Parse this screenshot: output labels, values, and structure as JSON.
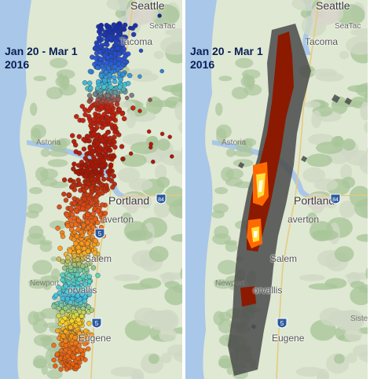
{
  "date_label": "Jan 20 - Mar 1\n2016",
  "cities": [
    {
      "id": "seattle",
      "name": "Seattle",
      "size": "large"
    },
    {
      "id": "seatac",
      "name": "SeaTac",
      "size": "small"
    },
    {
      "id": "tacoma",
      "name": "Tacoma",
      "size": "medium"
    },
    {
      "id": "astoria",
      "name": "Astoria",
      "size": "faint"
    },
    {
      "id": "portland",
      "name": "Portland",
      "size": "large"
    },
    {
      "id": "beaverton",
      "name": "averton",
      "size": "medium"
    },
    {
      "id": "salem",
      "name": "Salem",
      "size": "medium"
    },
    {
      "id": "newport",
      "name": "Newport",
      "size": "faint"
    },
    {
      "id": "corvallis",
      "name": "orvallis",
      "size": "medium"
    },
    {
      "id": "eugene",
      "name": "Eugene",
      "size": "medium"
    },
    {
      "id": "sisters",
      "name": "Siste",
      "size": "faint"
    }
  ],
  "highways": [
    "5",
    "84",
    "5",
    "5"
  ],
  "colors": {
    "water": "#a9c7e8",
    "land": "#dfe8d3",
    "forest": "#a9c59a",
    "mountain": "#cfd8c4",
    "urban": "#d9d5cc",
    "label": "#0a1f55",
    "density_gray": "#4a4a4a",
    "density_red": "#8b1a00",
    "density_orange": "#ff6a00",
    "density_yellow": "#ffe040",
    "density_white": "#fffbe8"
  },
  "icons": [
    "highway-shield-icon"
  ]
}
